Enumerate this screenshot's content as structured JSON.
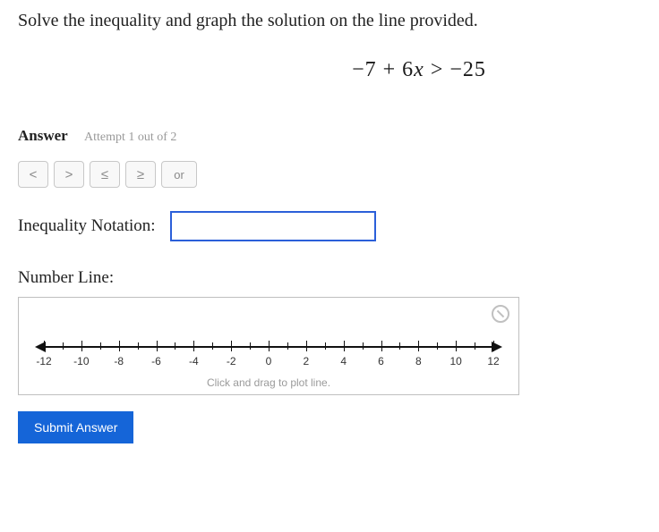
{
  "instruction": "Solve the inequality and graph the solution on the line provided.",
  "equation": {
    "lhs_pre": "−7 + 6",
    "var": "x",
    "gt": " > ",
    "rhs": "−25"
  },
  "answer": {
    "label": "Answer",
    "attempt": "Attempt 1 out of 2"
  },
  "ops": {
    "lt": "<",
    "gt": ">",
    "le": "≤",
    "ge": "≥",
    "or": "or"
  },
  "notation": {
    "label": "Inequality Notation:",
    "value": ""
  },
  "numberline": {
    "label": "Number Line:",
    "hint": "Click and drag to plot line.",
    "min": -12,
    "max": 12,
    "major_step": 2,
    "minor_step": 1,
    "labels": [
      "-12",
      "-10",
      "-8",
      "-6",
      "-4",
      "-2",
      "0",
      "2",
      "4",
      "6",
      "8",
      "10",
      "12"
    ]
  },
  "submit": "Submit Answer",
  "colors": {
    "accent": "#1565d8",
    "input_border": "#2b5fd9",
    "muted": "#9a9a9a",
    "box_border": "#bfbfbf"
  }
}
